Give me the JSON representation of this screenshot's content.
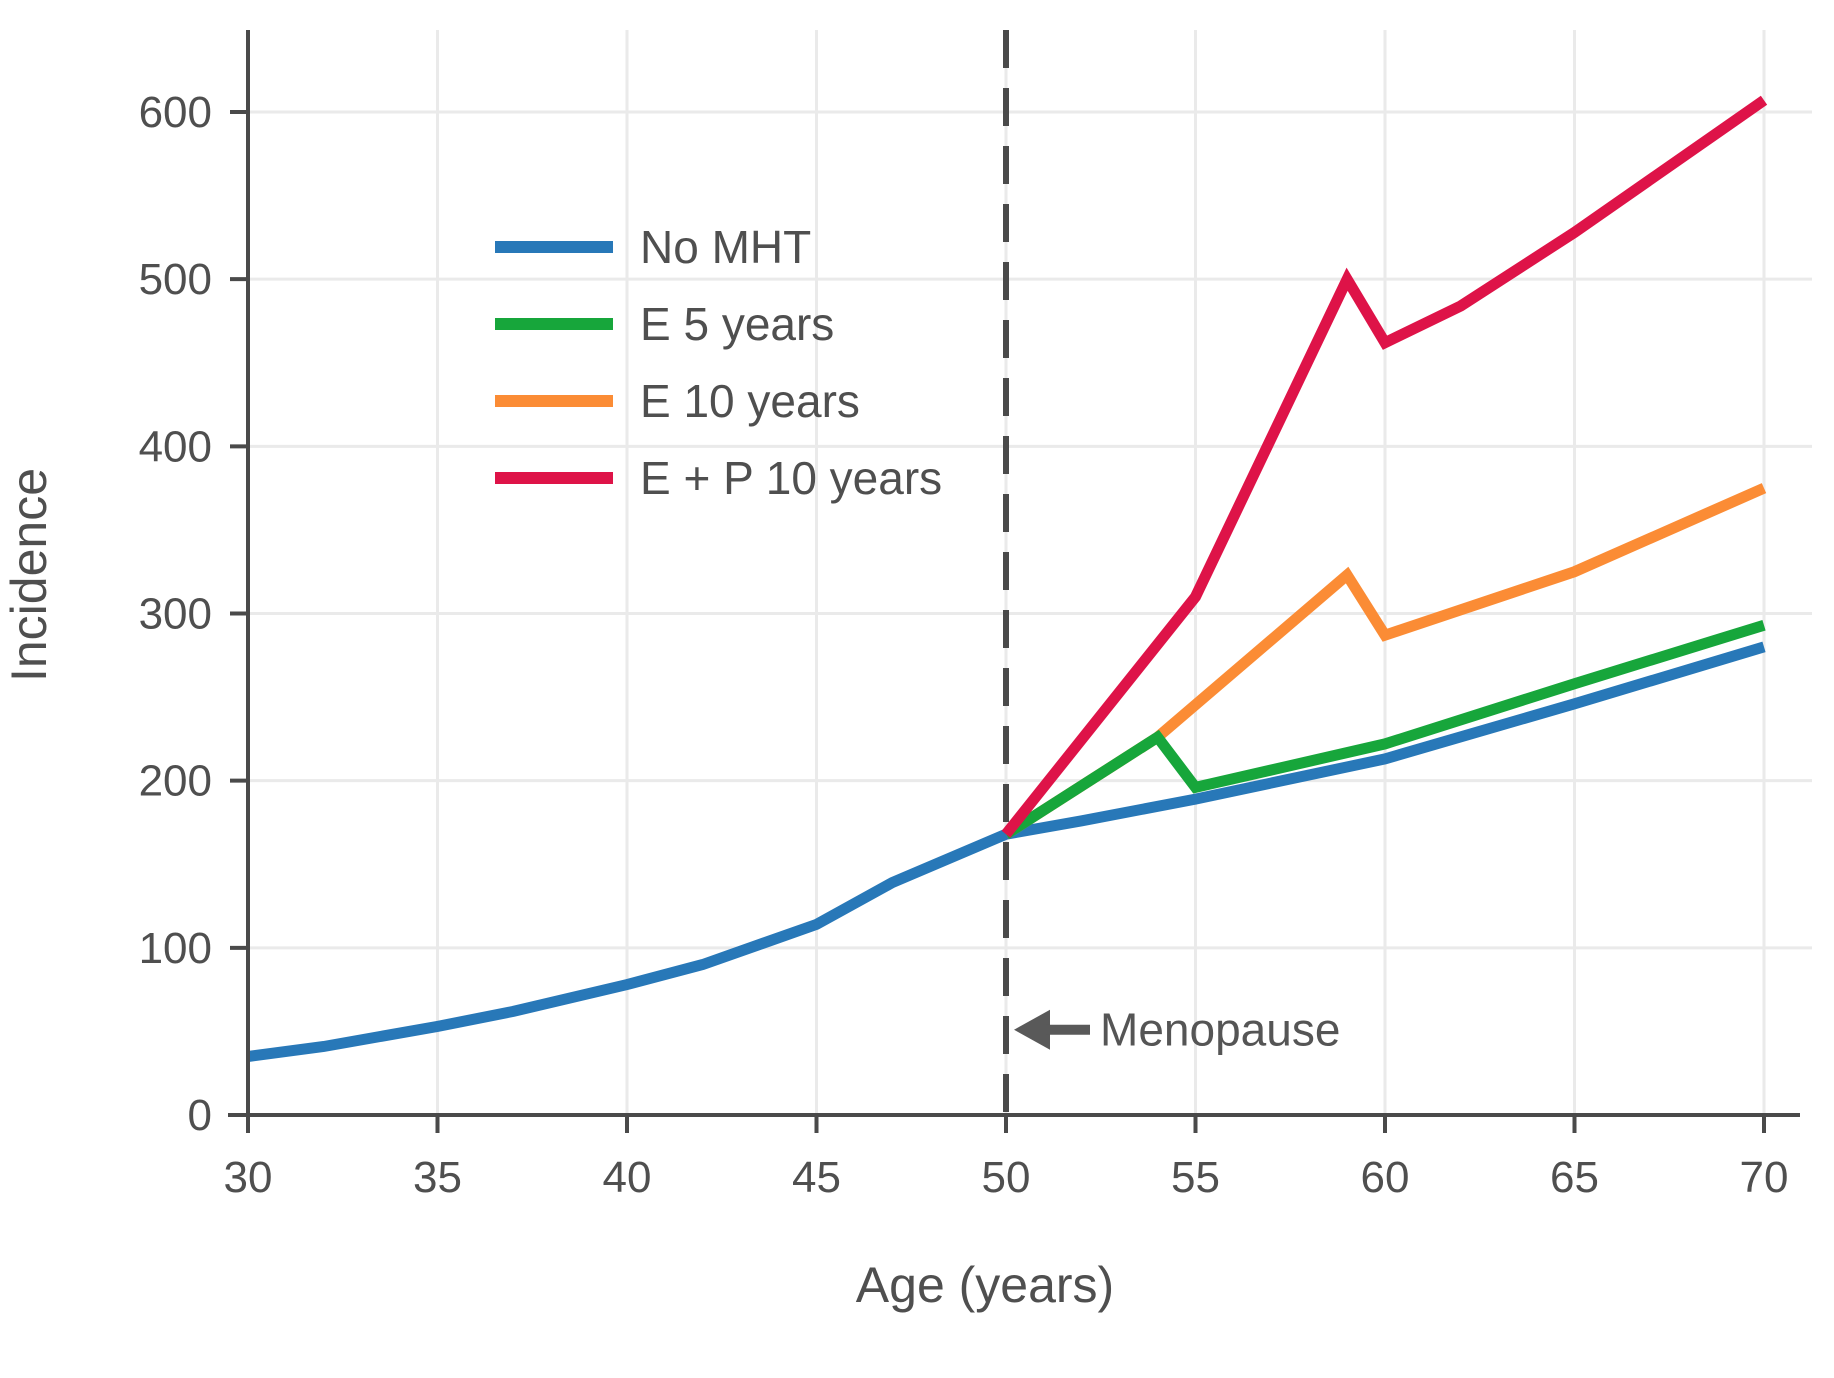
{
  "figure": {
    "background": "#ffffff",
    "text_color": "#4f4f4f",
    "grid_color": "#eaeaea",
    "spine_color": "#4a4a4a"
  },
  "chart_data": {
    "type": "line",
    "title": "",
    "xlabel": "Age (years)",
    "ylabel": "Incidence",
    "x_ticks": [
      30,
      35,
      40,
      45,
      50,
      55,
      60,
      65,
      70
    ],
    "y_ticks": [
      0,
      100,
      200,
      300,
      400,
      500,
      600
    ],
    "xlim": [
      30,
      70
    ],
    "ylim": [
      0,
      646
    ],
    "grid": true,
    "legend_position": "upper-left-inside",
    "series": [
      {
        "name": "No MHT",
        "color": "#2878b8",
        "points": [
          [
            30,
            35
          ],
          [
            32,
            41
          ],
          [
            35,
            53
          ],
          [
            37,
            62
          ],
          [
            40,
            78
          ],
          [
            42,
            90
          ],
          [
            45,
            114
          ],
          [
            47,
            139
          ],
          [
            50,
            168
          ],
          [
            52,
            176
          ],
          [
            55,
            189
          ],
          [
            60,
            213
          ],
          [
            65,
            246
          ],
          [
            70,
            280
          ]
        ]
      },
      {
        "name": "E 5 years",
        "color": "#17a63b",
        "points": [
          [
            50,
            168
          ],
          [
            54,
            226
          ],
          [
            55,
            196
          ],
          [
            60,
            222
          ],
          [
            65,
            258
          ],
          [
            70,
            293
          ]
        ]
      },
      {
        "name": "E 10 years",
        "color": "#fb8c35",
        "points": [
          [
            50,
            168
          ],
          [
            54,
            226
          ],
          [
            59,
            323
          ],
          [
            60,
            287
          ],
          [
            65,
            325
          ],
          [
            70,
            375
          ]
        ]
      },
      {
        "name": "E + P 10 years",
        "color": "#de1348",
        "points": [
          [
            50,
            168
          ],
          [
            55,
            310
          ],
          [
            59,
            500
          ],
          [
            60,
            462
          ],
          [
            62,
            484
          ],
          [
            65,
            528
          ],
          [
            70,
            607
          ]
        ]
      }
    ],
    "draw_order": [
      0,
      2,
      1,
      3
    ],
    "vline": {
      "x": 50,
      "style": "dashed",
      "color": "#4a4a4a"
    },
    "annotation": {
      "label": "Menopause",
      "x": 50,
      "y": 51,
      "arrow": "left"
    }
  }
}
